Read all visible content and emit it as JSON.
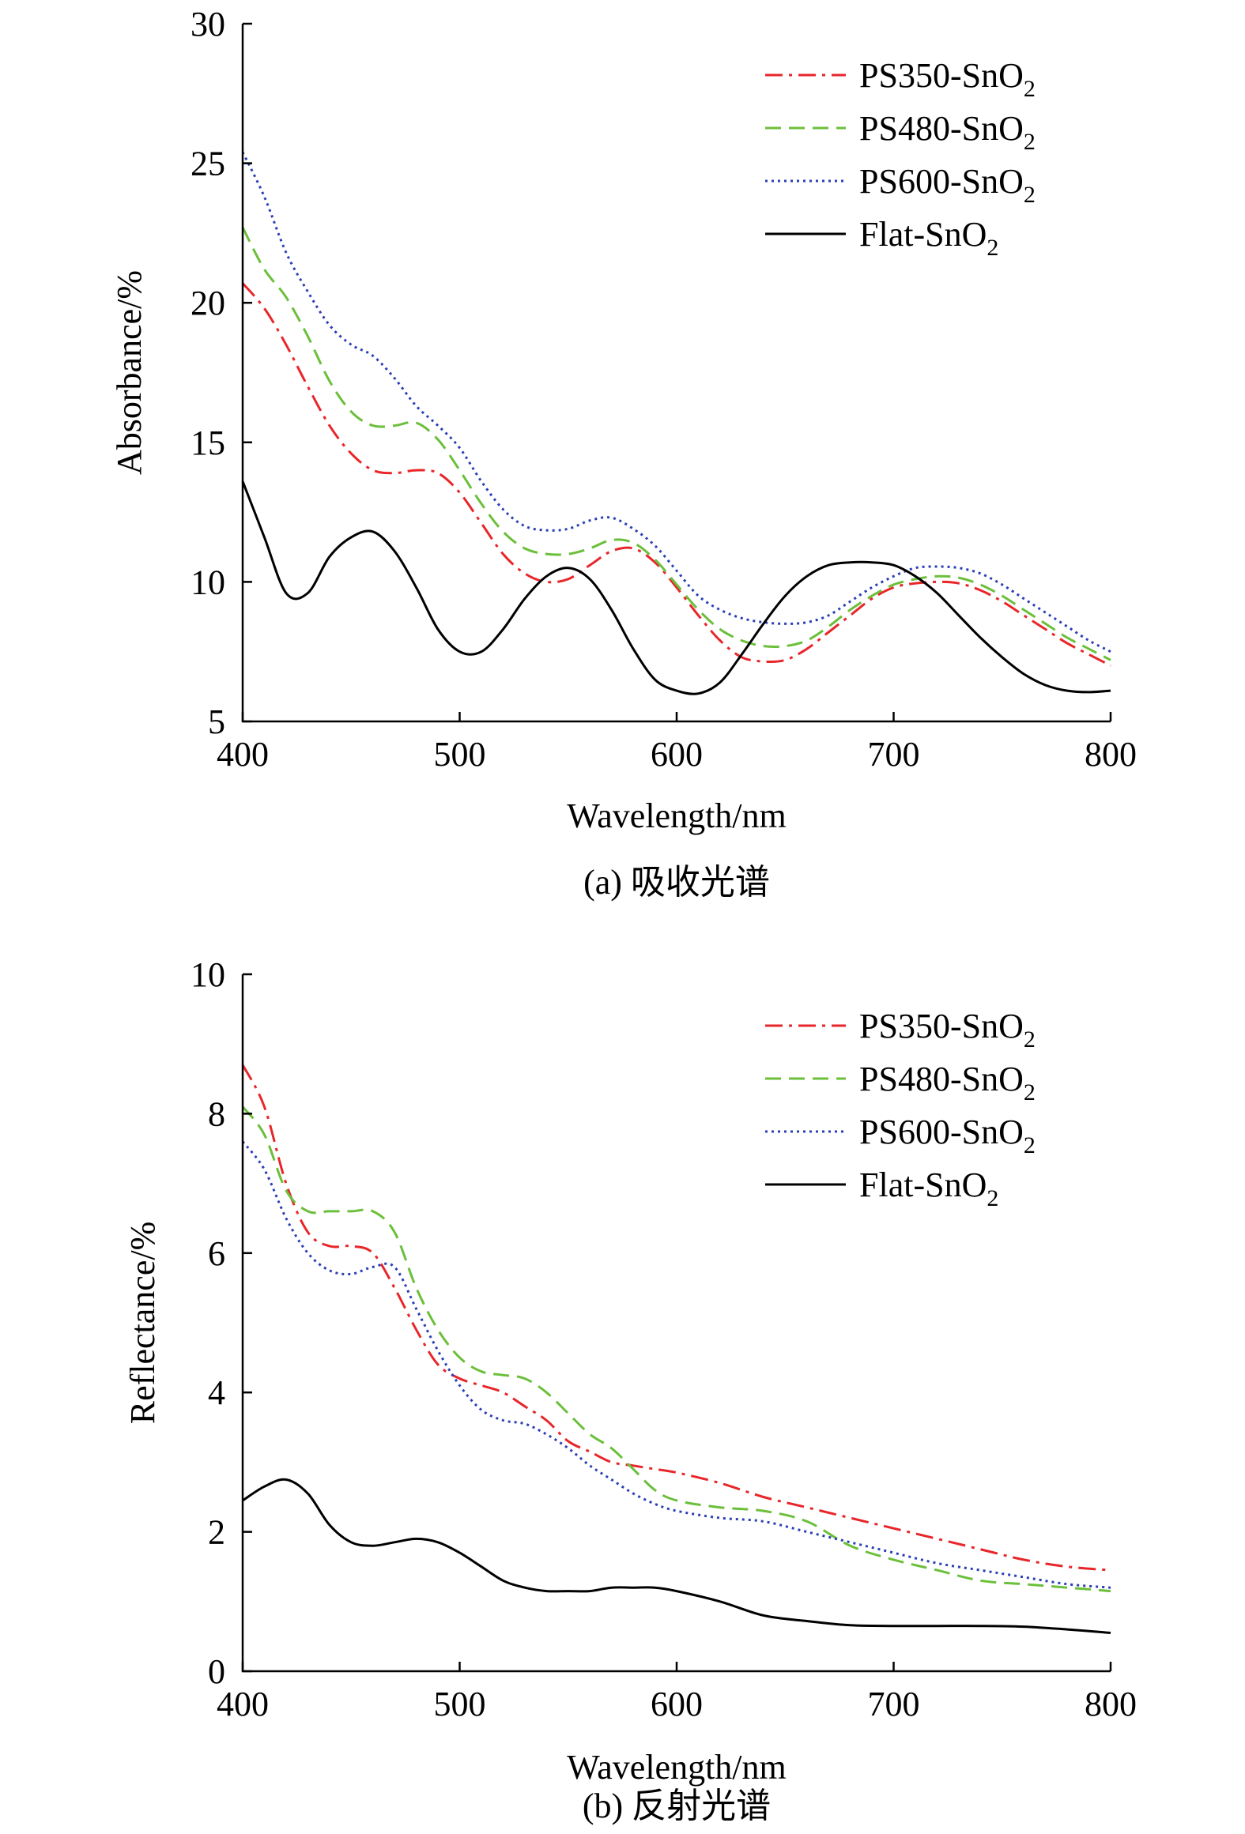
{
  "chart_data": [
    {
      "id": "a",
      "type": "line",
      "caption": "(a) 吸收光谱",
      "xlabel": "Wavelength/nm",
      "ylabel": "Absorbance/%",
      "xlim": [
        400,
        800
      ],
      "ylim": [
        5,
        30
      ],
      "xticks": [
        400,
        500,
        600,
        700,
        800
      ],
      "yticks": [
        5,
        10,
        15,
        20,
        25,
        30
      ],
      "legend_position": "top-right",
      "grid": false,
      "series": [
        {
          "name": "PS350-SnO",
          "name_sub": "2",
          "color": "#e8262a",
          "dash": "dashdot",
          "x": [
            400,
            410,
            420,
            430,
            440,
            450,
            460,
            470,
            480,
            490,
            500,
            510,
            520,
            530,
            540,
            550,
            560,
            570,
            580,
            590,
            600,
            610,
            620,
            630,
            640,
            650,
            660,
            670,
            680,
            690,
            700,
            710,
            720,
            730,
            740,
            750,
            760,
            770,
            780,
            790,
            800
          ],
          "y": [
            20.7,
            19.8,
            18.5,
            17.0,
            15.6,
            14.6,
            14.0,
            13.9,
            14.0,
            13.9,
            13.2,
            12.1,
            11.0,
            10.3,
            10.0,
            10.1,
            10.6,
            11.1,
            11.2,
            10.7,
            9.8,
            8.8,
            7.9,
            7.3,
            7.15,
            7.2,
            7.6,
            8.2,
            8.8,
            9.4,
            9.8,
            9.95,
            10.0,
            9.95,
            9.7,
            9.3,
            8.8,
            8.3,
            7.8,
            7.4,
            7.0
          ]
        },
        {
          "name": "PS480-SnO",
          "name_sub": "2",
          "color": "#6bbf3a",
          "dash": "dashed",
          "x": [
            400,
            410,
            420,
            430,
            440,
            450,
            460,
            470,
            480,
            490,
            500,
            510,
            520,
            530,
            540,
            550,
            560,
            570,
            580,
            590,
            600,
            610,
            620,
            630,
            640,
            650,
            660,
            670,
            680,
            690,
            700,
            710,
            720,
            730,
            740,
            750,
            760,
            770,
            780,
            790,
            800
          ],
          "y": [
            22.7,
            21.2,
            20.2,
            18.8,
            17.2,
            16.1,
            15.6,
            15.6,
            15.7,
            15.1,
            14.0,
            12.8,
            11.8,
            11.2,
            11.0,
            11.0,
            11.2,
            11.5,
            11.4,
            10.8,
            9.9,
            9.0,
            8.3,
            7.9,
            7.7,
            7.7,
            7.9,
            8.4,
            9.0,
            9.5,
            9.9,
            10.1,
            10.2,
            10.15,
            9.9,
            9.5,
            9.0,
            8.5,
            8.0,
            7.6,
            7.2
          ]
        },
        {
          "name": "PS600-SnO",
          "name_sub": "2",
          "color": "#2a3fb5",
          "dash": "dotted",
          "x": [
            400,
            410,
            420,
            430,
            440,
            450,
            460,
            470,
            480,
            490,
            500,
            510,
            520,
            530,
            540,
            550,
            560,
            570,
            580,
            590,
            600,
            610,
            620,
            630,
            640,
            650,
            660,
            670,
            680,
            690,
            700,
            710,
            720,
            730,
            740,
            750,
            760,
            770,
            780,
            790,
            800
          ],
          "y": [
            25.4,
            23.8,
            21.8,
            20.4,
            19.2,
            18.5,
            18.1,
            17.3,
            16.3,
            15.6,
            14.8,
            13.6,
            12.6,
            12.0,
            11.85,
            11.9,
            12.2,
            12.3,
            11.9,
            11.3,
            10.4,
            9.5,
            9.0,
            8.7,
            8.55,
            8.5,
            8.55,
            8.8,
            9.3,
            9.8,
            10.2,
            10.5,
            10.55,
            10.5,
            10.3,
            9.9,
            9.4,
            8.9,
            8.4,
            7.9,
            7.5
          ]
        },
        {
          "name": "Flat-SnO",
          "name_sub": "2",
          "color": "#000000",
          "dash": "solid",
          "x": [
            400,
            410,
            420,
            430,
            440,
            450,
            460,
            470,
            480,
            490,
            500,
            510,
            520,
            530,
            540,
            550,
            560,
            570,
            580,
            590,
            600,
            610,
            620,
            630,
            640,
            650,
            660,
            670,
            680,
            690,
            700,
            710,
            720,
            730,
            740,
            750,
            760,
            770,
            780,
            790,
            800
          ],
          "y": [
            13.6,
            11.6,
            9.6,
            9.6,
            10.9,
            11.6,
            11.8,
            11.1,
            9.8,
            8.3,
            7.5,
            7.5,
            8.3,
            9.4,
            10.2,
            10.5,
            10.1,
            9.0,
            7.6,
            6.5,
            6.1,
            6.0,
            6.4,
            7.4,
            8.5,
            9.5,
            10.2,
            10.6,
            10.7,
            10.7,
            10.6,
            10.2,
            9.6,
            8.8,
            8.0,
            7.3,
            6.7,
            6.3,
            6.1,
            6.05,
            6.1
          ]
        }
      ]
    },
    {
      "id": "b",
      "type": "line",
      "caption": "(b) 反射光谱",
      "xlabel": "Wavelength/nm",
      "ylabel": "Reflectance/%",
      "xlim": [
        400,
        800
      ],
      "ylim": [
        0,
        10
      ],
      "xticks": [
        400,
        500,
        600,
        700,
        800
      ],
      "yticks": [
        0,
        2,
        4,
        6,
        8,
        10
      ],
      "legend_position": "top-right",
      "grid": false,
      "series": [
        {
          "name": "PS350-SnO",
          "name_sub": "2",
          "color": "#e8262a",
          "dash": "dashdot",
          "x": [
            400,
            410,
            420,
            430,
            440,
            450,
            460,
            470,
            480,
            490,
            500,
            510,
            520,
            530,
            540,
            550,
            560,
            570,
            580,
            590,
            600,
            620,
            640,
            660,
            680,
            700,
            720,
            740,
            760,
            780,
            800
          ],
          "y": [
            8.7,
            8.1,
            7.0,
            6.3,
            6.1,
            6.1,
            6.0,
            5.5,
            4.9,
            4.4,
            4.2,
            4.1,
            4.0,
            3.8,
            3.6,
            3.3,
            3.15,
            3.0,
            2.95,
            2.9,
            2.85,
            2.7,
            2.5,
            2.35,
            2.2,
            2.05,
            1.9,
            1.75,
            1.6,
            1.5,
            1.45
          ]
        },
        {
          "name": "PS480-SnO",
          "name_sub": "2",
          "color": "#6bbf3a",
          "dash": "dashed",
          "x": [
            400,
            410,
            420,
            430,
            440,
            450,
            460,
            470,
            480,
            490,
            500,
            510,
            520,
            530,
            540,
            550,
            560,
            570,
            580,
            590,
            600,
            620,
            640,
            660,
            680,
            700,
            720,
            740,
            760,
            780,
            800
          ],
          "y": [
            8.1,
            7.7,
            6.9,
            6.6,
            6.6,
            6.6,
            6.6,
            6.3,
            5.5,
            4.9,
            4.5,
            4.3,
            4.25,
            4.2,
            4.0,
            3.7,
            3.4,
            3.2,
            2.9,
            2.6,
            2.45,
            2.35,
            2.3,
            2.15,
            1.8,
            1.6,
            1.45,
            1.3,
            1.25,
            1.2,
            1.15
          ]
        },
        {
          "name": "PS600-SnO",
          "name_sub": "2",
          "color": "#2a3fb5",
          "dash": "dotted",
          "x": [
            400,
            410,
            420,
            430,
            440,
            450,
            460,
            470,
            480,
            490,
            500,
            510,
            520,
            530,
            540,
            550,
            560,
            570,
            580,
            590,
            600,
            620,
            640,
            660,
            680,
            700,
            720,
            740,
            760,
            780,
            800
          ],
          "y": [
            7.6,
            7.2,
            6.5,
            6.0,
            5.75,
            5.7,
            5.8,
            5.8,
            5.2,
            4.6,
            4.1,
            3.75,
            3.6,
            3.55,
            3.4,
            3.2,
            2.95,
            2.75,
            2.55,
            2.4,
            2.3,
            2.2,
            2.15,
            2.0,
            1.85,
            1.7,
            1.55,
            1.45,
            1.35,
            1.25,
            1.2
          ]
        },
        {
          "name": "Flat-SnO",
          "name_sub": "2",
          "color": "#000000",
          "dash": "solid",
          "x": [
            400,
            410,
            420,
            430,
            440,
            450,
            460,
            470,
            480,
            490,
            500,
            510,
            520,
            530,
            540,
            550,
            560,
            570,
            580,
            590,
            600,
            620,
            640,
            660,
            680,
            700,
            720,
            740,
            760,
            780,
            800
          ],
          "y": [
            2.45,
            2.65,
            2.75,
            2.55,
            2.1,
            1.85,
            1.8,
            1.85,
            1.9,
            1.85,
            1.7,
            1.5,
            1.3,
            1.2,
            1.15,
            1.15,
            1.15,
            1.2,
            1.2,
            1.2,
            1.15,
            1.0,
            0.8,
            0.72,
            0.66,
            0.65,
            0.65,
            0.65,
            0.64,
            0.6,
            0.55
          ]
        }
      ]
    }
  ]
}
